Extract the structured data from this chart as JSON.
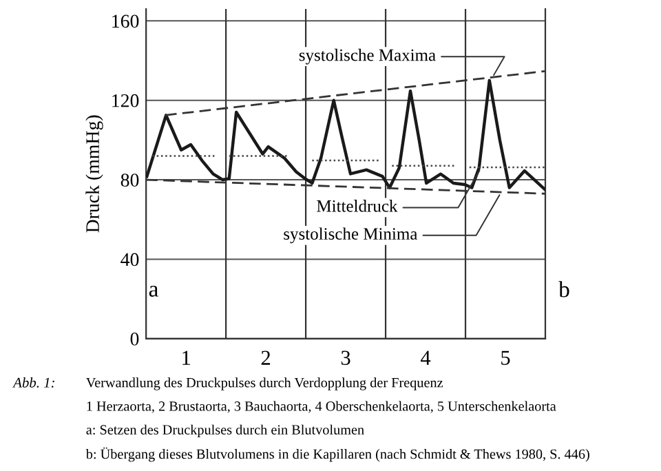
{
  "chart_data": {
    "type": "line",
    "ylabel": "Druck (mmHg)",
    "xlim": [
      0,
      5
    ],
    "ylim": [
      0,
      166
    ],
    "xticks": [
      {
        "value": 0.5,
        "label": "1"
      },
      {
        "value": 1.5,
        "label": "2"
      },
      {
        "value": 2.5,
        "label": "3"
      },
      {
        "value": 3.5,
        "label": "4"
      },
      {
        "value": 4.5,
        "label": "5"
      }
    ],
    "yticks": [
      0,
      40,
      80,
      120,
      160
    ],
    "grid": "y",
    "legend": false,
    "series": [
      {
        "color": "#1a1a1a",
        "line_style": "solid",
        "x": [
          0.01,
          0.25,
          0.44,
          0.56,
          0.7,
          0.84,
          0.96,
          1.04,
          1.13,
          1.46,
          1.53,
          1.73,
          1.88,
          1.99,
          2.08,
          2.19,
          2.35,
          2.45,
          2.56,
          2.76,
          2.96,
          3.05,
          3.17,
          3.31,
          3.42,
          3.51,
          3.69,
          3.85,
          3.99,
          4.08,
          4.17,
          4.3,
          4.43,
          4.55,
          4.74,
          4.99
        ],
        "values": [
          81.7,
          112.5,
          95,
          97.7,
          89.7,
          82.9,
          80,
          80.6,
          114,
          93,
          96.6,
          91,
          84,
          80.6,
          78.3,
          90.9,
          120,
          102,
          83,
          85,
          81.7,
          76,
          86,
          124.7,
          100,
          78.3,
          82.9,
          78.3,
          77.6,
          76,
          86,
          130,
          100,
          76,
          84.5,
          75.3
        ]
      },
      {
        "color": "#333333",
        "line_style": "dashed",
        "x": [
          0.24,
          5.0
        ],
        "values": [
          112.5,
          134.7
        ]
      },
      {
        "color": "#333333",
        "line_style": "dashed",
        "x": [
          0,
          5.0
        ],
        "values": [
          80,
          73
        ]
      },
      {
        "color": "#444444",
        "line_style": "dotted",
        "x": [
          0.08,
          0.87
        ],
        "values": [
          92,
          92
        ]
      },
      {
        "color": "#444444",
        "line_style": "dotted",
        "x": [
          1.04,
          1.79
        ],
        "values": [
          92,
          92
        ]
      },
      {
        "color": "#444444",
        "line_style": "dotted",
        "x": [
          2.08,
          2.91
        ],
        "values": [
          89.7,
          89.7
        ]
      },
      {
        "color": "#444444",
        "line_style": "dotted",
        "x": [
          3.08,
          3.88
        ],
        "values": [
          87,
          87
        ]
      },
      {
        "color": "#444444",
        "line_style": "dotted",
        "x": [
          4.05,
          5.0
        ],
        "values": [
          86.3,
          86.3
        ]
      }
    ],
    "ref_lines": [
      {
        "axis": "x",
        "value": 1,
        "color": "#333333"
      },
      {
        "axis": "x",
        "value": 2,
        "color": "#333333"
      },
      {
        "axis": "x",
        "value": 3,
        "color": "#333333"
      },
      {
        "axis": "x",
        "value": 4,
        "color": "#333333"
      }
    ],
    "annotations": [
      {
        "text": "systolische Maxima",
        "x": 4.33,
        "y": 131
      },
      {
        "text": "Mitteldruck",
        "x": 4.2,
        "y": 86.3
      },
      {
        "text": "systolische Minima",
        "x": 4.45,
        "y": 74
      },
      "a",
      "b",
      "Abb. 1:",
      "Verwandlung des Druckpulses durch Verdopplung der Frequenz",
      "1 Herzaorta, 2 Brustaorta, 3 Bauchaorta, 4 Oberschenkelaorta, 5 Unterschenkelaorta",
      "a: Setzen des Druckpulses durch ein Blutvolumen",
      "b: Übergang dieses Blutvolumens in die Kapillaren (nach Schmidt & Thews 1980, S. 446)"
    ]
  }
}
